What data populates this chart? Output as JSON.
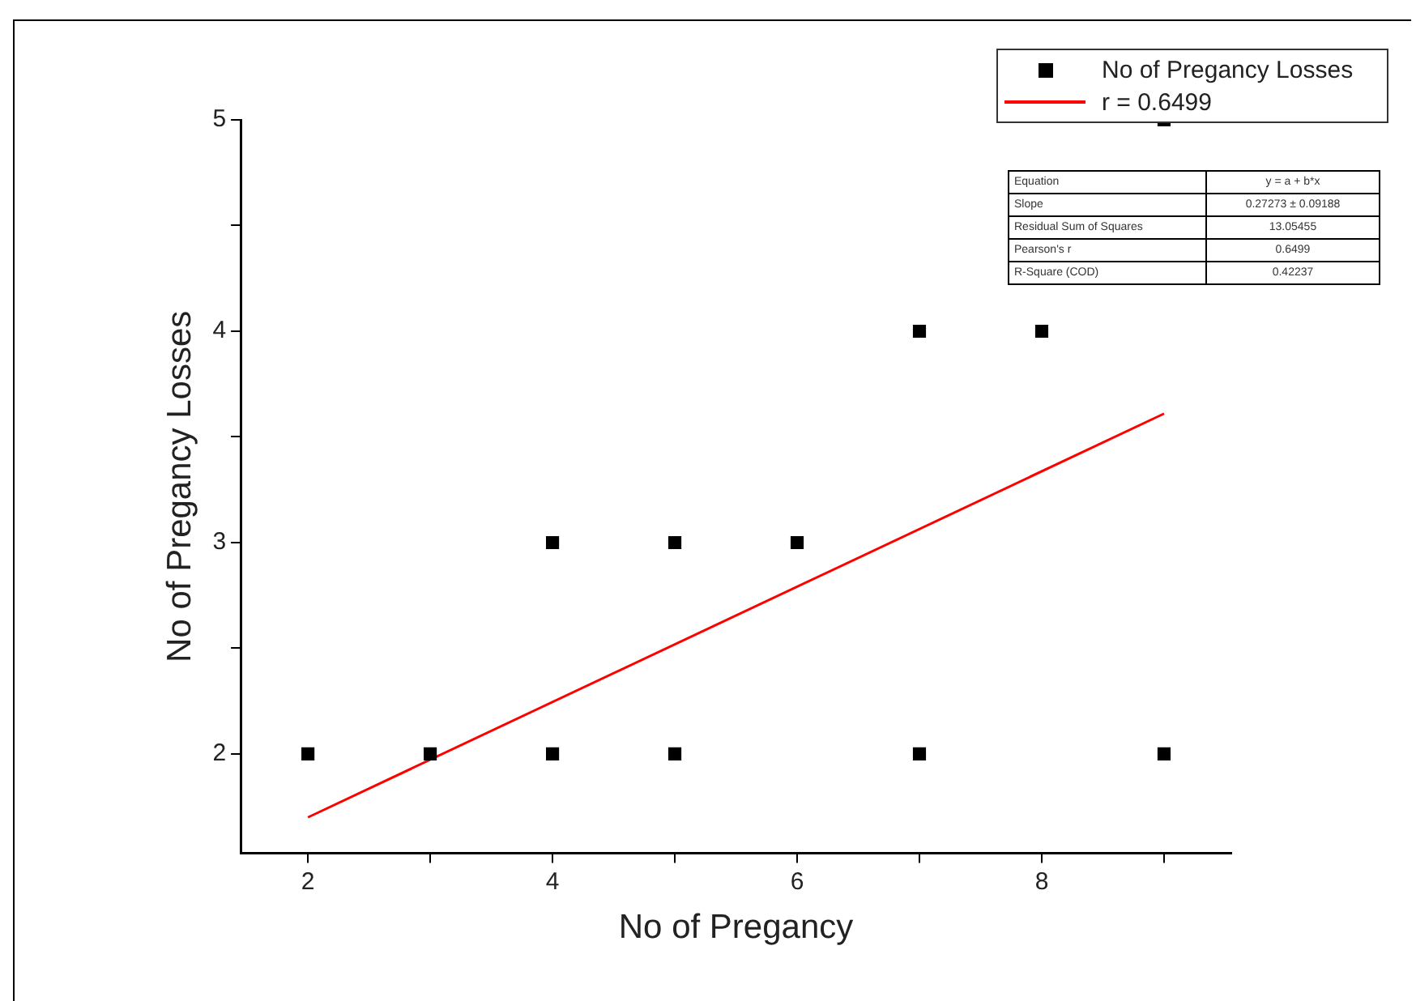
{
  "chart_data": {
    "type": "scatter",
    "xlabel": "No of Pregancy",
    "ylabel": "No of Pregancy Losses",
    "xlim": [
      1.45,
      9.55
    ],
    "xticks": [
      2,
      {
        "value": 3,
        "label": null
      },
      4,
      {
        "value": 5,
        "label": null
      },
      6,
      {
        "value": 7,
        "label": null
      },
      8,
      {
        "value": 9,
        "label": null
      }
    ],
    "ylim": [
      1.53,
      5
    ],
    "yticks": [
      2,
      {
        "value": 2.5,
        "label": null
      },
      3,
      {
        "value": 3.5,
        "label": null
      },
      4,
      {
        "value": 4.5,
        "label": null
      },
      5
    ],
    "series": [
      {
        "name": "No of Pregancy Losses",
        "color": "#000000",
        "marker": "square",
        "x": [
          2,
          3,
          4,
          4,
          5,
          5,
          6,
          7,
          7,
          8,
          9,
          9
        ],
        "values": [
          2,
          2,
          2,
          3,
          2,
          3,
          3,
          2,
          4,
          4,
          2,
          5
        ]
      },
      {
        "name": "r = 0.6499",
        "type": "line",
        "color": "#ff0000",
        "marker": "none",
        "line_style": "solid",
        "x": [
          2,
          9
        ],
        "values": [
          1.7,
          3.61
        ]
      }
    ],
    "legend": "top right",
    "grid": false,
    "annotations": [
      "Equation",
      "y = a + b*x",
      "Slope",
      "0.27273 ± 0.09188",
      "Residual Sum of Squares",
      "13.05455",
      "Pearson's r",
      "0.6499",
      "R-Square (COD)",
      "0.42237"
    ]
  }
}
